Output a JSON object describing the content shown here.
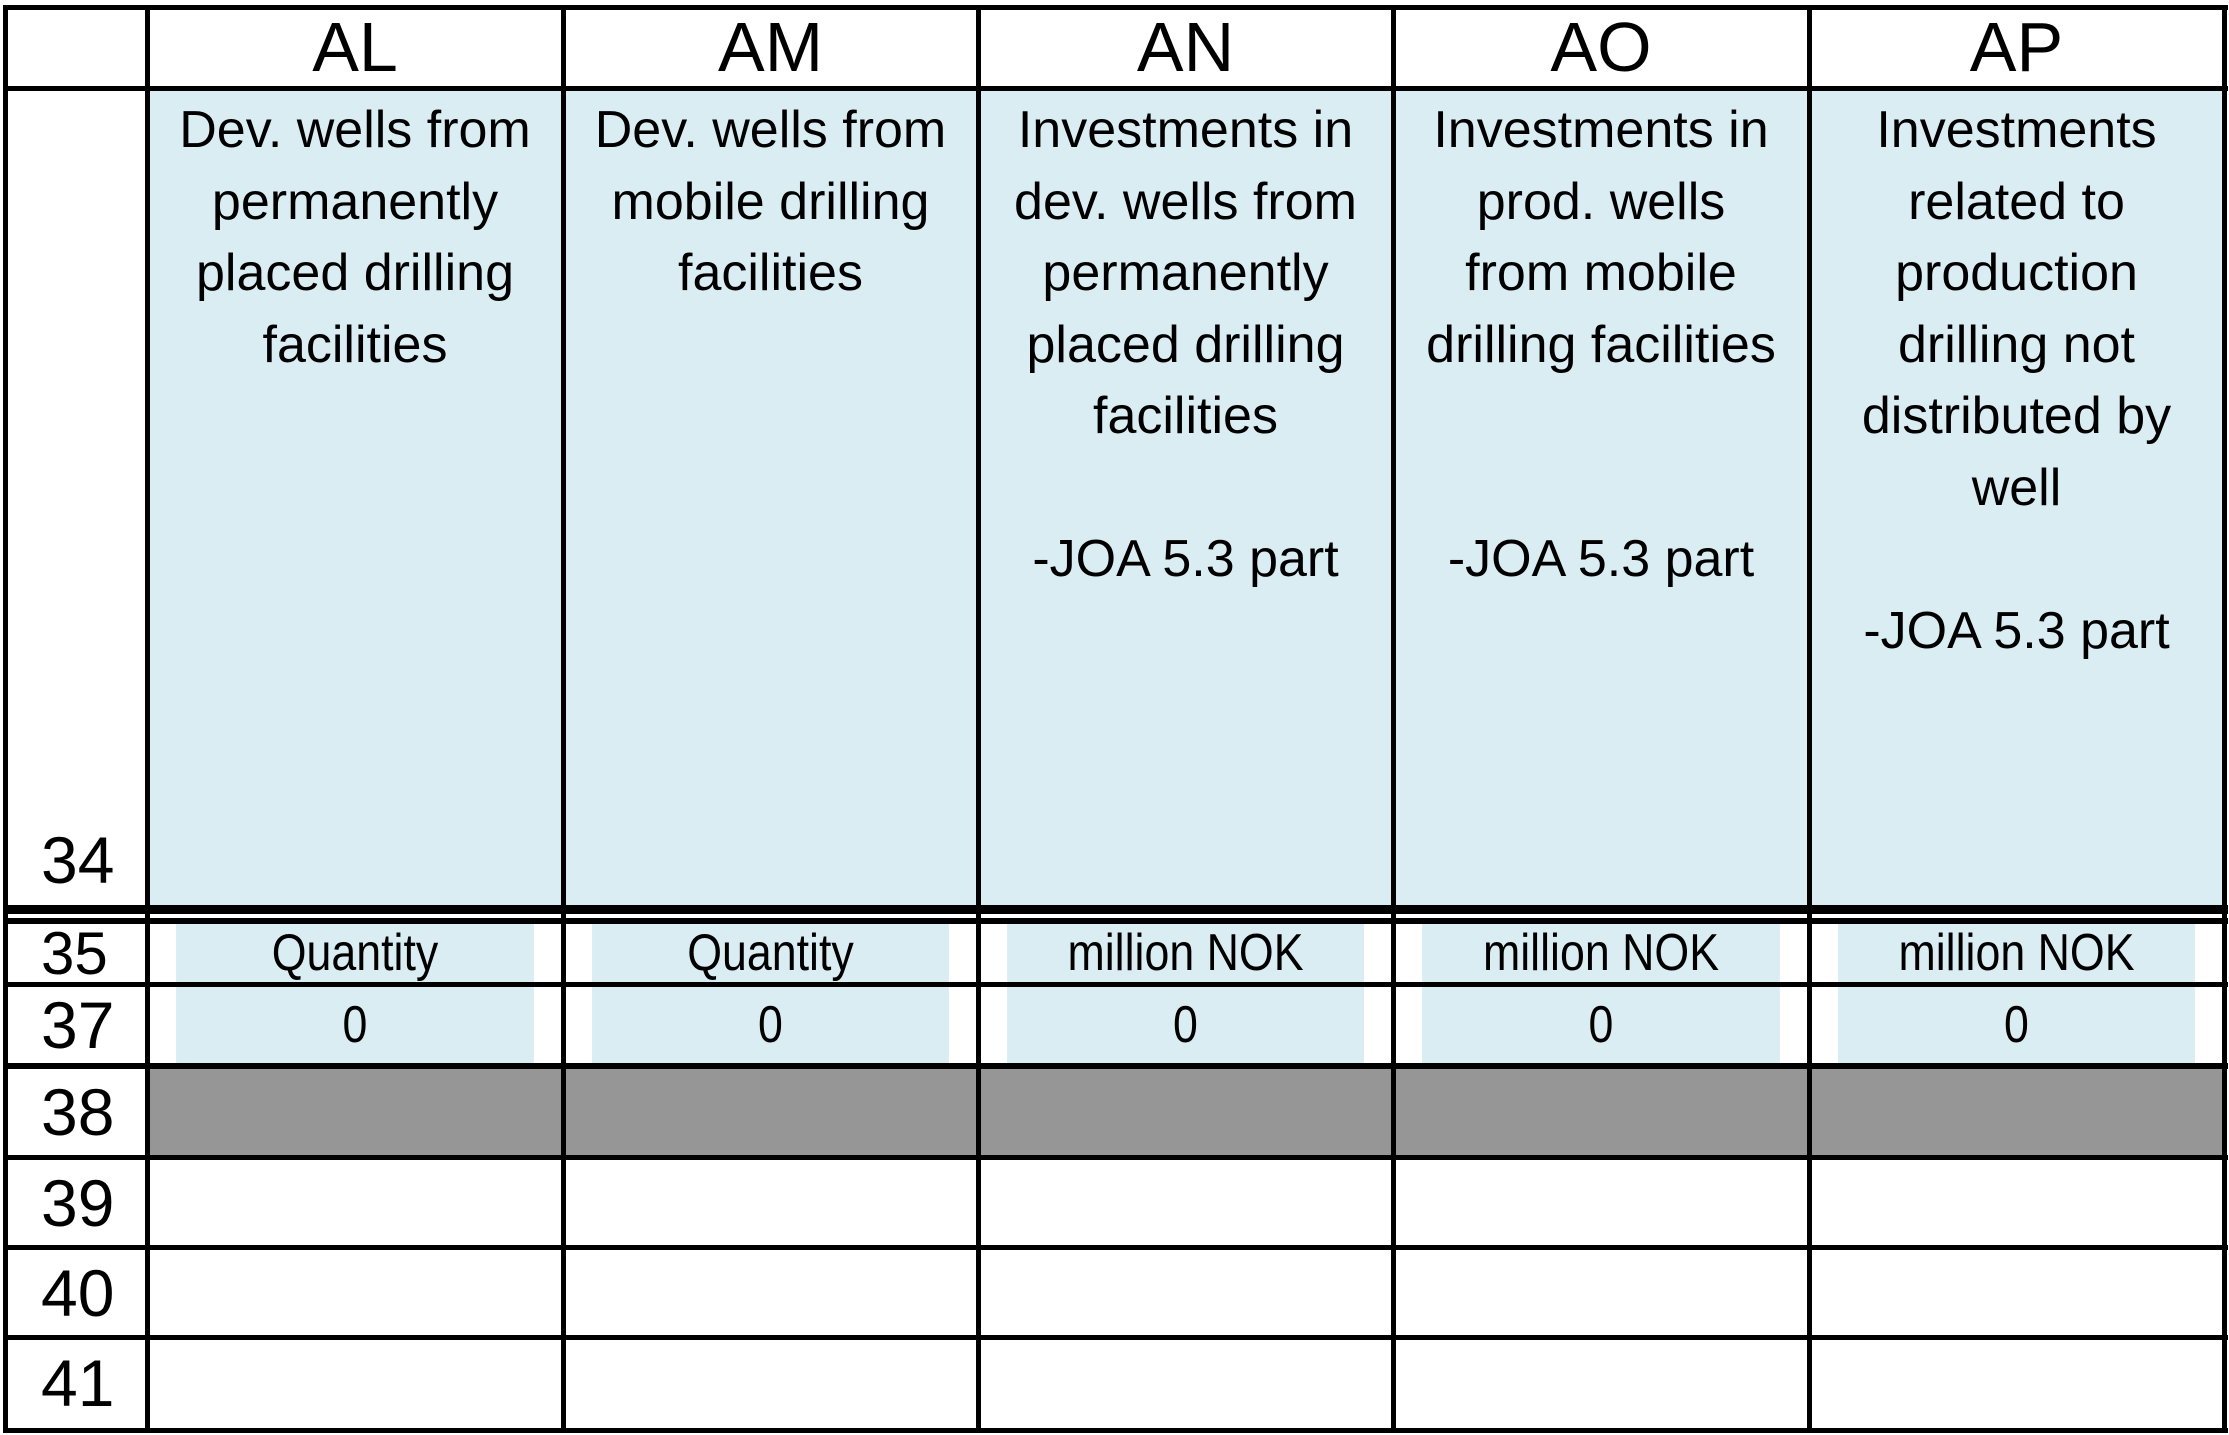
{
  "spreadsheet": {
    "columns": [
      {
        "letter": "AL",
        "description": "Dev. wells from\npermanently\nplaced drilling\nfacilities",
        "unit": "Quantity",
        "value": "0"
      },
      {
        "letter": "AM",
        "description": "Dev. wells from\nmobile drilling\nfacilities",
        "unit": "Quantity",
        "value": "0"
      },
      {
        "letter": "AN",
        "description": "Investments in\ndev. wells from\npermanently\nplaced drilling\nfacilities\n\n-JOA 5.3 part",
        "unit": "million NOK",
        "value": "0"
      },
      {
        "letter": "AO",
        "description": "Investments in\nprod. wells\nfrom mobile\ndrilling facilities\n\n\n-JOA 5.3 part",
        "unit": "million NOK",
        "value": "0"
      },
      {
        "letter": "AP",
        "description": "Investments\nrelated to\nproduction\ndrilling not\ndistributed by\nwell\n\n-JOA 5.3 part",
        "unit": "million NOK",
        "value": "0"
      }
    ],
    "row_numbers": [
      "34",
      "35",
      "37",
      "38",
      "39",
      "40",
      "41"
    ],
    "colors": {
      "header_fill": "#daedf3",
      "separator_fill": "#969696",
      "grid": "#000000"
    }
  }
}
